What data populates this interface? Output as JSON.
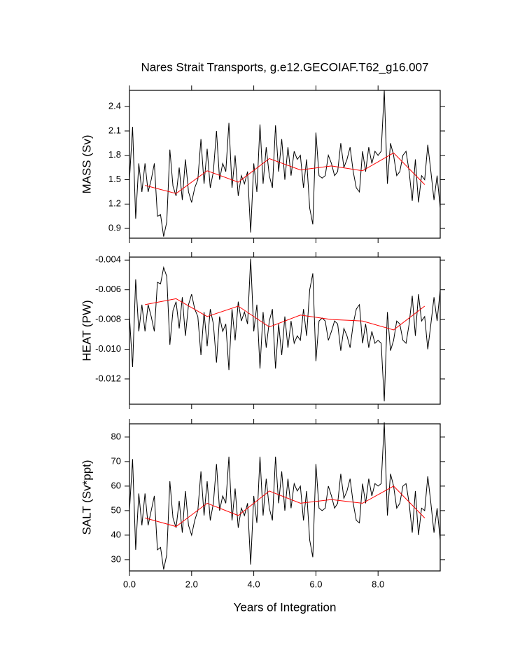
{
  "chart_data": [
    {
      "type": "line",
      "title": "Nares Strait Transports, g.e12.GECOIAF.T62_g16.007",
      "y_label": "MASS (Sv)",
      "ylim": [
        0.78,
        2.6
      ],
      "yticks": [
        0.9,
        1.2,
        1.5,
        1.8,
        2.1,
        2.4
      ],
      "x": [
        0,
        0.1,
        0.2,
        0.3,
        0.4,
        0.5,
        0.6,
        0.7,
        0.8,
        0.9,
        1,
        1.1,
        1.2,
        1.3,
        1.4,
        1.5,
        1.6,
        1.7,
        1.8,
        1.9,
        2,
        2.1,
        2.2,
        2.3,
        2.4,
        2.5,
        2.6,
        2.7,
        2.8,
        2.9,
        3,
        3.1,
        3.2,
        3.3,
        3.4,
        3.5,
        3.6,
        3.7,
        3.8,
        3.9,
        4,
        4.1,
        4.2,
        4.3,
        4.4,
        4.5,
        4.6,
        4.7,
        4.8,
        4.9,
        5,
        5.1,
        5.2,
        5.3,
        5.4,
        5.5,
        5.6,
        5.7,
        5.8,
        5.9,
        6,
        6.1,
        6.2,
        6.3,
        6.4,
        6.5,
        6.6,
        6.7,
        6.8,
        6.9,
        7,
        7.1,
        7.2,
        7.3,
        7.4,
        7.5,
        7.6,
        7.7,
        7.8,
        7.9,
        8,
        8.1,
        8.2,
        8.3,
        8.4,
        8.5,
        8.6,
        8.7,
        8.8,
        8.9,
        9,
        9.1,
        9.2,
        9.3,
        9.4,
        9.5,
        9.6,
        9.7,
        9.8,
        9.9,
        10
      ],
      "series": [
        {
          "color": "#000000",
          "values": [
            1.5,
            2.15,
            1.02,
            1.7,
            1.35,
            1.7,
            1.35,
            1.5,
            1.7,
            1.05,
            1.07,
            0.8,
            0.98,
            1.87,
            1.42,
            1.3,
            1.65,
            1.25,
            1.75,
            1.35,
            1.22,
            1.4,
            1.5,
            2.0,
            1.45,
            1.88,
            1.4,
            1.6,
            2.1,
            1.5,
            1.7,
            1.6,
            2.2,
            1.4,
            1.8,
            1.3,
            1.55,
            1.45,
            1.6,
            0.85,
            1.7,
            1.35,
            2.18,
            1.45,
            1.9,
            1.55,
            1.4,
            2.17,
            1.6,
            2.0,
            1.5,
            1.9,
            1.55,
            1.85,
            1.75,
            1.8,
            1.4,
            1.75,
            1.15,
            0.95,
            2.08,
            1.55,
            1.52,
            1.55,
            1.8,
            1.7,
            1.55,
            1.6,
            1.95,
            1.65,
            1.75,
            1.9,
            1.6,
            1.4,
            1.35,
            1.85,
            1.6,
            1.9,
            1.7,
            1.85,
            1.8,
            1.85,
            2.6,
            1.45,
            1.95,
            1.8,
            1.55,
            1.6,
            1.8,
            1.85,
            1.6,
            1.24,
            1.75,
            1.22,
            1.55,
            1.5,
            1.93,
            1.6,
            1.25,
            1.55,
            1.15
          ]
        },
        {
          "color": "#ff0000",
          "x": [
            0.5,
            1.5,
            2.5,
            3.5,
            4.5,
            5.5,
            6.5,
            7.5,
            8.5,
            9.5
          ],
          "values": [
            1.43,
            1.33,
            1.61,
            1.47,
            1.76,
            1.62,
            1.67,
            1.61,
            1.83,
            1.44
          ]
        }
      ]
    },
    {
      "type": "line",
      "y_label": "HEAT (PW)",
      "ylim": [
        -0.0137,
        -0.0038
      ],
      "yticks": [
        -0.012,
        {
          "value": -0.01,
          "label": "-0.010"
        },
        -0.008,
        -0.006,
        -0.004
      ],
      "x": [
        0,
        0.1,
        0.2,
        0.3,
        0.4,
        0.5,
        0.6,
        0.7,
        0.8,
        0.9,
        1,
        1.1,
        1.2,
        1.3,
        1.4,
        1.5,
        1.6,
        1.7,
        1.8,
        1.9,
        2,
        2.1,
        2.2,
        2.3,
        2.4,
        2.5,
        2.6,
        2.7,
        2.8,
        2.9,
        3,
        3.1,
        3.2,
        3.3,
        3.4,
        3.5,
        3.6,
        3.7,
        3.8,
        3.9,
        4,
        4.1,
        4.2,
        4.3,
        4.4,
        4.5,
        4.6,
        4.7,
        4.8,
        4.9,
        5,
        5.1,
        5.2,
        5.3,
        5.4,
        5.5,
        5.6,
        5.7,
        5.8,
        5.9,
        6,
        6.1,
        6.2,
        6.3,
        6.4,
        6.5,
        6.6,
        6.7,
        6.8,
        6.9,
        7,
        7.1,
        7.2,
        7.3,
        7.4,
        7.5,
        7.6,
        7.7,
        7.8,
        7.9,
        8,
        8.1,
        8.2,
        8.3,
        8.4,
        8.5,
        8.6,
        8.7,
        8.8,
        8.9,
        9,
        9.1,
        9.2,
        9.3,
        9.4,
        9.5,
        9.6,
        9.7,
        9.8,
        9.9,
        10
      ],
      "series": [
        {
          "color": "#000000",
          "values": [
            -0.0078,
            -0.0112,
            -0.0053,
            -0.0088,
            -0.007,
            -0.0088,
            -0.007,
            -0.0078,
            -0.0088,
            -0.0055,
            -0.0056,
            -0.0045,
            -0.0051,
            -0.0097,
            -0.0074,
            -0.0068,
            -0.0086,
            -0.0065,
            -0.0091,
            -0.007,
            -0.0063,
            -0.0073,
            -0.0078,
            -0.0104,
            -0.0075,
            -0.0098,
            -0.0073,
            -0.0083,
            -0.0109,
            -0.0078,
            -0.0088,
            -0.0083,
            -0.0114,
            -0.0073,
            -0.0094,
            -0.0068,
            -0.0081,
            -0.0075,
            -0.0083,
            -0.0039,
            -0.0088,
            -0.007,
            -0.0113,
            -0.0075,
            -0.0099,
            -0.0081,
            -0.0073,
            -0.0113,
            -0.0083,
            -0.0104,
            -0.0078,
            -0.0099,
            -0.0081,
            -0.0096,
            -0.0091,
            -0.0094,
            -0.0073,
            -0.0091,
            -0.006,
            -0.0049,
            -0.0108,
            -0.0081,
            -0.0079,
            -0.0081,
            -0.0094,
            -0.0088,
            -0.0081,
            -0.0083,
            -0.0101,
            -0.0086,
            -0.0091,
            -0.0099,
            -0.0083,
            -0.0073,
            -0.007,
            -0.0096,
            -0.0083,
            -0.0099,
            -0.0088,
            -0.0096,
            -0.0094,
            -0.0096,
            -0.0135,
            -0.0075,
            -0.0101,
            -0.0094,
            -0.0081,
            -0.0083,
            -0.0094,
            -0.0096,
            -0.0083,
            -0.0064,
            -0.0091,
            -0.0063,
            -0.0081,
            -0.0078,
            -0.01,
            -0.0083,
            -0.0065,
            -0.0081,
            -0.006
          ]
        },
        {
          "color": "#ff0000",
          "x": [
            0.5,
            1.5,
            2.5,
            3.5,
            4.5,
            5.5,
            6.5,
            7.5,
            8.5,
            9.5
          ],
          "values": [
            -0.007,
            -0.0066,
            -0.0078,
            -0.0071,
            -0.0085,
            -0.0077,
            -0.008,
            -0.0081,
            -0.0087,
            -0.0071
          ]
        }
      ]
    },
    {
      "type": "line",
      "y_label": "SALT (Sv*ppt)",
      "x_label": "Years of Integration",
      "ylim": [
        25.4,
        85.4
      ],
      "yticks": [
        30,
        40,
        50,
        60,
        70,
        80
      ],
      "xlim": [
        0,
        10
      ],
      "xticks": [
        {
          "value": 0,
          "label": "0.0"
        },
        {
          "value": 2,
          "label": "2.0"
        },
        {
          "value": 4,
          "label": "4.0"
        },
        {
          "value": 6,
          "label": "6.0"
        },
        {
          "value": 8,
          "label": "8.0"
        }
      ],
      "x": [
        0,
        0.1,
        0.2,
        0.3,
        0.4,
        0.5,
        0.6,
        0.7,
        0.8,
        0.9,
        1,
        1.1,
        1.2,
        1.3,
        1.4,
        1.5,
        1.6,
        1.7,
        1.8,
        1.9,
        2,
        2.1,
        2.2,
        2.3,
        2.4,
        2.5,
        2.6,
        2.7,
        2.8,
        2.9,
        3,
        3.1,
        3.2,
        3.3,
        3.4,
        3.5,
        3.6,
        3.7,
        3.8,
        3.9,
        4,
        4.1,
        4.2,
        4.3,
        4.4,
        4.5,
        4.6,
        4.7,
        4.8,
        4.9,
        5,
        5.1,
        5.2,
        5.3,
        5.4,
        5.5,
        5.6,
        5.7,
        5.8,
        5.9,
        6,
        6.1,
        6.2,
        6.3,
        6.4,
        6.5,
        6.6,
        6.7,
        6.8,
        6.9,
        7,
        7.1,
        7.2,
        7.3,
        7.4,
        7.5,
        7.6,
        7.7,
        7.8,
        7.9,
        8,
        8.1,
        8.2,
        8.3,
        8.4,
        8.5,
        8.6,
        8.7,
        8.8,
        8.9,
        9,
        9.1,
        9.2,
        9.3,
        9.4,
        9.5,
        9.6,
        9.7,
        9.8,
        9.9,
        10
      ],
      "series": [
        {
          "color": "#000000",
          "values": [
            50,
            71,
            34,
            57,
            44,
            57,
            44,
            50,
            56,
            34,
            35,
            26,
            32,
            62,
            47,
            43,
            54,
            41,
            58,
            44,
            40,
            46,
            50,
            66,
            48,
            62,
            46,
            53,
            69,
            50,
            56,
            53,
            72,
            46,
            59,
            43,
            51,
            48,
            53,
            28,
            56,
            45,
            72,
            48,
            63,
            51,
            46,
            72,
            53,
            66,
            50,
            63,
            51,
            61,
            58,
            60,
            46,
            58,
            38,
            31,
            69,
            51,
            50,
            51,
            60,
            56,
            51,
            53,
            65,
            55,
            58,
            63,
            53,
            46,
            45,
            61,
            53,
            63,
            56,
            61,
            60,
            61,
            86,
            48,
            65,
            60,
            51,
            53,
            60,
            61,
            53,
            41,
            58,
            40,
            51,
            50,
            64,
            53,
            41,
            51,
            38
          ]
        },
        {
          "color": "#ff0000",
          "x": [
            0.5,
            1.5,
            2.5,
            3.5,
            4.5,
            5.5,
            6.5,
            7.5,
            8.5,
            9.5
          ],
          "values": [
            47,
            43.5,
            53,
            48,
            58,
            53,
            54.5,
            53,
            60,
            47
          ]
        }
      ]
    }
  ]
}
